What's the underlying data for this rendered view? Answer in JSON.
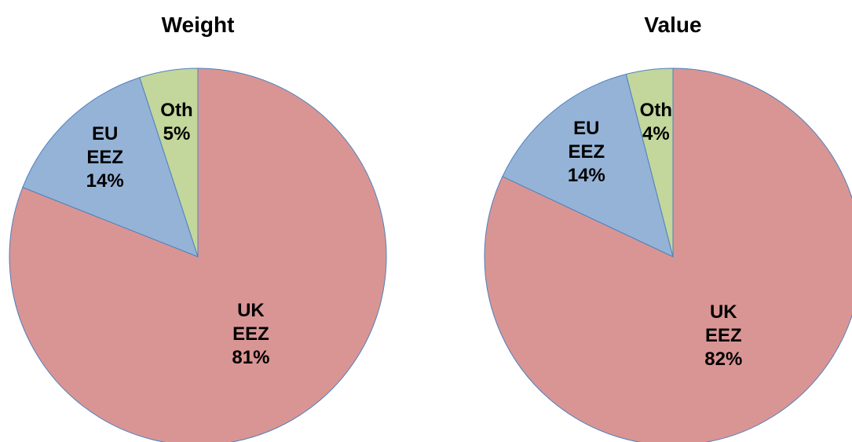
{
  "chart_data": [
    {
      "type": "pie",
      "title": "Weight",
      "categories": [
        "UK EEZ",
        "EU EEZ",
        "Oth"
      ],
      "values": [
        81,
        14,
        5
      ],
      "value_labels": [
        "81%",
        "14%",
        "5%"
      ],
      "colors": [
        "#d99594",
        "#95b3d7",
        "#c3d69b"
      ]
    },
    {
      "type": "pie",
      "title": "Value",
      "categories": [
        "UK EEZ",
        "EU EEZ",
        "Oth"
      ],
      "values": [
        82,
        14,
        4
      ],
      "value_labels": [
        "82%",
        "14%",
        "4%"
      ],
      "colors": [
        "#d99594",
        "#95b3d7",
        "#c3d69b"
      ]
    }
  ]
}
